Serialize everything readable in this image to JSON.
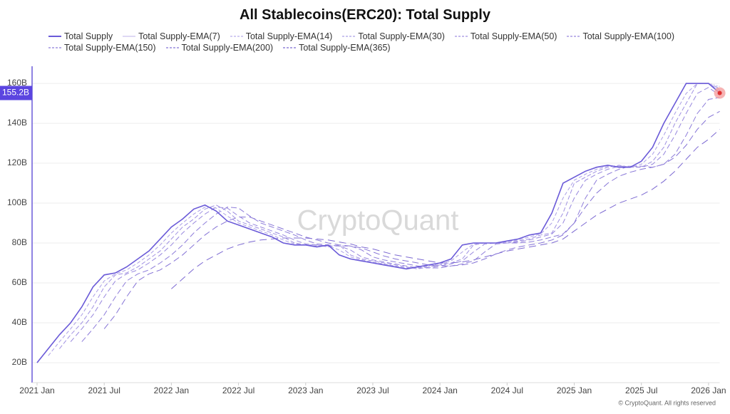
{
  "chart_data": {
    "type": "line",
    "title": "All Stablecoins(ERC20): Total Supply",
    "watermark": "CryptoQuant",
    "footer": "© CryptoQuant. All rights reserved",
    "current_value": {
      "value": 155.2,
      "label": "155.2B"
    },
    "x": [
      "2021-01",
      "2021-02",
      "2021-03",
      "2021-04",
      "2021-05",
      "2021-06",
      "2021-07",
      "2021-08",
      "2021-09",
      "2021-10",
      "2021-11",
      "2021-12",
      "2022-01",
      "2022-02",
      "2022-03",
      "2022-04",
      "2022-05",
      "2022-06",
      "2022-07",
      "2022-08",
      "2022-09",
      "2022-10",
      "2022-11",
      "2022-12",
      "2023-01",
      "2023-02",
      "2023-03",
      "2023-04",
      "2023-05",
      "2023-06",
      "2023-07",
      "2023-08",
      "2023-09",
      "2023-10",
      "2023-11",
      "2023-12",
      "2024-01",
      "2024-02",
      "2024-03",
      "2024-04",
      "2024-05",
      "2024-06",
      "2024-07",
      "2024-08",
      "2024-09",
      "2024-10",
      "2024-11",
      "2024-12",
      "2025-01",
      "2025-02",
      "2025-03",
      "2025-04",
      "2025-05",
      "2025-06",
      "2025-07",
      "2025-08",
      "2025-09",
      "2025-10",
      "2025-11",
      "2025-12",
      "2026-01",
      "2026-02"
    ],
    "xlim": [
      "2021-01",
      "2026-02"
    ],
    "xticks": [
      {
        "value": "2021-01",
        "label": "2021 Jan"
      },
      {
        "value": "2021-07",
        "label": "2021 Jul"
      },
      {
        "value": "2022-01",
        "label": "2022 Jan"
      },
      {
        "value": "2022-07",
        "label": "2022 Jul"
      },
      {
        "value": "2023-01",
        "label": "2023 Jan"
      },
      {
        "value": "2023-07",
        "label": "2023 Jul"
      },
      {
        "value": "2024-01",
        "label": "2024 Jan"
      },
      {
        "value": "2024-07",
        "label": "2024 Jul"
      },
      {
        "value": "2025-01",
        "label": "2025 Jan"
      },
      {
        "value": "2025-07",
        "label": "2025 Jul"
      },
      {
        "value": "2026-01",
        "label": "2026 Jan"
      }
    ],
    "ylim": [
      10,
      168.6
    ],
    "yticks": [
      {
        "value": 20,
        "label": "20B"
      },
      {
        "value": 40,
        "label": "40B"
      },
      {
        "value": 60,
        "label": "60B"
      },
      {
        "value": 80,
        "label": "80B"
      },
      {
        "value": 100,
        "label": "100B"
      },
      {
        "value": 120,
        "label": "120B"
      },
      {
        "value": 140,
        "label": "140B"
      },
      {
        "value": 160,
        "label": "160B"
      }
    ],
    "grid": true,
    "series": [
      {
        "name": "Total Supply",
        "color": "#6a5ad8",
        "dash": "",
        "values": [
          20,
          27,
          34,
          40,
          48,
          58,
          64,
          65,
          68,
          72,
          76,
          82,
          88,
          92,
          97,
          99,
          96,
          91,
          89,
          87,
          85,
          83,
          80,
          79,
          79,
          78,
          79,
          74,
          72,
          71,
          70,
          69,
          68,
          67,
          68,
          69,
          70,
          72,
          79,
          80,
          80,
          80,
          81,
          82,
          84,
          85,
          95,
          110,
          113,
          116,
          118,
          119,
          118,
          118,
          121,
          128,
          140,
          150,
          160,
          160,
          160,
          155.2
        ]
      },
      {
        "name": "Total Supply-EMA(7)",
        "color": "#c9c0ee",
        "dash": "",
        "values": [
          20,
          27,
          34,
          40,
          48,
          58,
          64,
          65,
          68,
          72,
          76,
          82,
          88,
          92,
          97,
          99,
          96,
          91,
          89,
          87,
          85,
          83,
          80,
          79,
          79,
          78,
          79,
          74,
          72,
          71,
          70,
          69,
          68,
          67,
          68,
          69,
          70,
          72,
          79,
          80,
          80,
          80,
          81,
          82,
          84,
          85,
          95,
          110,
          113,
          116,
          118,
          119,
          118,
          118,
          121,
          128,
          140,
          150,
          160,
          160,
          160,
          157
        ]
      },
      {
        "name": "Total Supply-EMA(14)",
        "color": "#b9aeea",
        "dash": "2 2",
        "values": [
          20,
          27,
          34,
          40,
          48,
          58,
          64,
          65,
          68,
          72,
          76,
          82,
          88,
          92,
          97,
          99,
          96,
          91,
          89,
          87,
          85,
          83,
          80,
          79,
          79,
          78,
          79,
          74,
          72,
          71,
          70,
          69,
          68,
          67,
          68,
          69,
          70,
          72,
          79,
          80,
          80,
          80,
          81,
          82,
          84,
          85,
          95,
          110,
          113,
          116,
          118,
          119,
          118,
          118,
          121,
          128,
          140,
          150,
          160,
          160,
          160,
          158.5
        ]
      },
      {
        "name": "Total Supply-EMA(30)",
        "color": "#ab9fe6",
        "dash": "5 3",
        "values": [
          null,
          23.5,
          30.5,
          37,
          44,
          53,
          61,
          64.5,
          66.5,
          70,
          74,
          79,
          85,
          90,
          94.5,
          98,
          97.5,
          93.5,
          90,
          88,
          86,
          84,
          81.5,
          79.5,
          79,
          78.5,
          78.5,
          76.5,
          73,
          71.5,
          70.5,
          69.5,
          68.5,
          67.5,
          67.5,
          68.5,
          69.5,
          71,
          75.5,
          79.5,
          80,
          80,
          80.5,
          81.5,
          83,
          84.5,
          90,
          102.5,
          111.5,
          114.5,
          117,
          118.5,
          118.5,
          118,
          119.5,
          124.5,
          134,
          145,
          155,
          160,
          160,
          157.6
        ]
      },
      {
        "name": "Total Supply-EMA(50)",
        "color": "#a091e2",
        "dash": "6 3",
        "values": [
          null,
          null,
          27,
          34,
          40,
          48,
          58,
          64,
          65,
          68,
          72,
          76,
          82,
          88,
          92,
          97,
          99,
          96,
          91,
          89,
          87,
          85,
          83,
          80,
          79,
          79,
          78,
          79,
          74,
          72,
          71,
          70,
          69,
          68,
          67,
          68,
          69,
          70,
          72,
          79,
          80,
          80,
          80,
          81,
          82,
          84,
          85,
          95,
          110,
          113,
          116,
          118,
          119,
          118,
          118,
          121,
          128,
          140,
          150,
          160,
          160,
          156.5
        ]
      },
      {
        "name": "Total Supply-EMA(100)",
        "color": "#9787de",
        "dash": "7 4",
        "values": [
          null,
          null,
          null,
          30.5,
          37,
          44,
          53,
          61,
          64.5,
          66.5,
          70,
          74,
          79,
          85,
          90,
          94.5,
          98,
          97.5,
          93.5,
          90,
          88,
          86,
          84,
          81.5,
          79.5,
          79,
          78.5,
          78.5,
          76.5,
          73,
          71.5,
          70.5,
          69.5,
          68.5,
          67.5,
          67.5,
          68.5,
          69.5,
          71,
          75.5,
          79.5,
          80,
          80,
          80.5,
          81.5,
          83,
          84.5,
          90,
          102.5,
          111.5,
          114.5,
          117,
          118.5,
          118.5,
          118,
          119.5,
          124.5,
          134,
          145,
          155,
          158,
          154
        ]
      },
      {
        "name": "Total Supply-EMA(150)",
        "color": "#8e7dda",
        "dash": "8 4",
        "values": [
          null,
          null,
          null,
          null,
          30.5,
          37,
          44,
          53,
          61,
          64.5,
          66.5,
          70,
          74,
          79,
          85,
          90,
          94.5,
          98,
          97.5,
          93.5,
          90,
          88,
          86,
          84,
          81.5,
          79.5,
          79,
          78.5,
          78.5,
          76.5,
          73,
          71.5,
          70.5,
          69.5,
          68.5,
          67.5,
          67.5,
          68.5,
          69.5,
          71,
          75.5,
          79.5,
          80,
          80,
          80.5,
          81.5,
          83,
          84.5,
          90,
          102.5,
          111.5,
          114.5,
          117,
          118.5,
          118.5,
          118,
          119.5,
          124.5,
          134,
          145,
          152,
          153
        ]
      },
      {
        "name": "Total Supply-EMA(200)",
        "color": "#8573d6",
        "dash": "9 5",
        "values": [
          null,
          null,
          null,
          null,
          null,
          null,
          37,
          44,
          53,
          61,
          64.5,
          66.5,
          70,
          74,
          79,
          84,
          88,
          91,
          93,
          93,
          91,
          89,
          87,
          85,
          83,
          81.5,
          80,
          79,
          78.5,
          77.5,
          75.5,
          73.5,
          72,
          71,
          70,
          69,
          68.5,
          68.5,
          69,
          70,
          72,
          74.5,
          76.5,
          78,
          79,
          80,
          81.5,
          84,
          90,
          98,
          105,
          110,
          113.5,
          115.5,
          117,
          118,
          119.5,
          123,
          129,
          137,
          143,
          146
        ]
      },
      {
        "name": "Total Supply-EMA(365)",
        "color": "#7c69d2",
        "dash": "10 6",
        "values": [
          null,
          null,
          null,
          null,
          null,
          null,
          null,
          null,
          null,
          null,
          null,
          null,
          57,
          62,
          67,
          71,
          74,
          77,
          79,
          80.5,
          81.5,
          82,
          82.5,
          82.5,
          82.5,
          82,
          81.5,
          80.5,
          79.5,
          78,
          77,
          75.5,
          74,
          73,
          72,
          71,
          70,
          70,
          70.5,
          71.5,
          73,
          74.5,
          76,
          77,
          78,
          79,
          80,
          82,
          86,
          90,
          94,
          97,
          100,
          102,
          104,
          107,
          111,
          116,
          122,
          128,
          132,
          137
        ]
      }
    ]
  }
}
